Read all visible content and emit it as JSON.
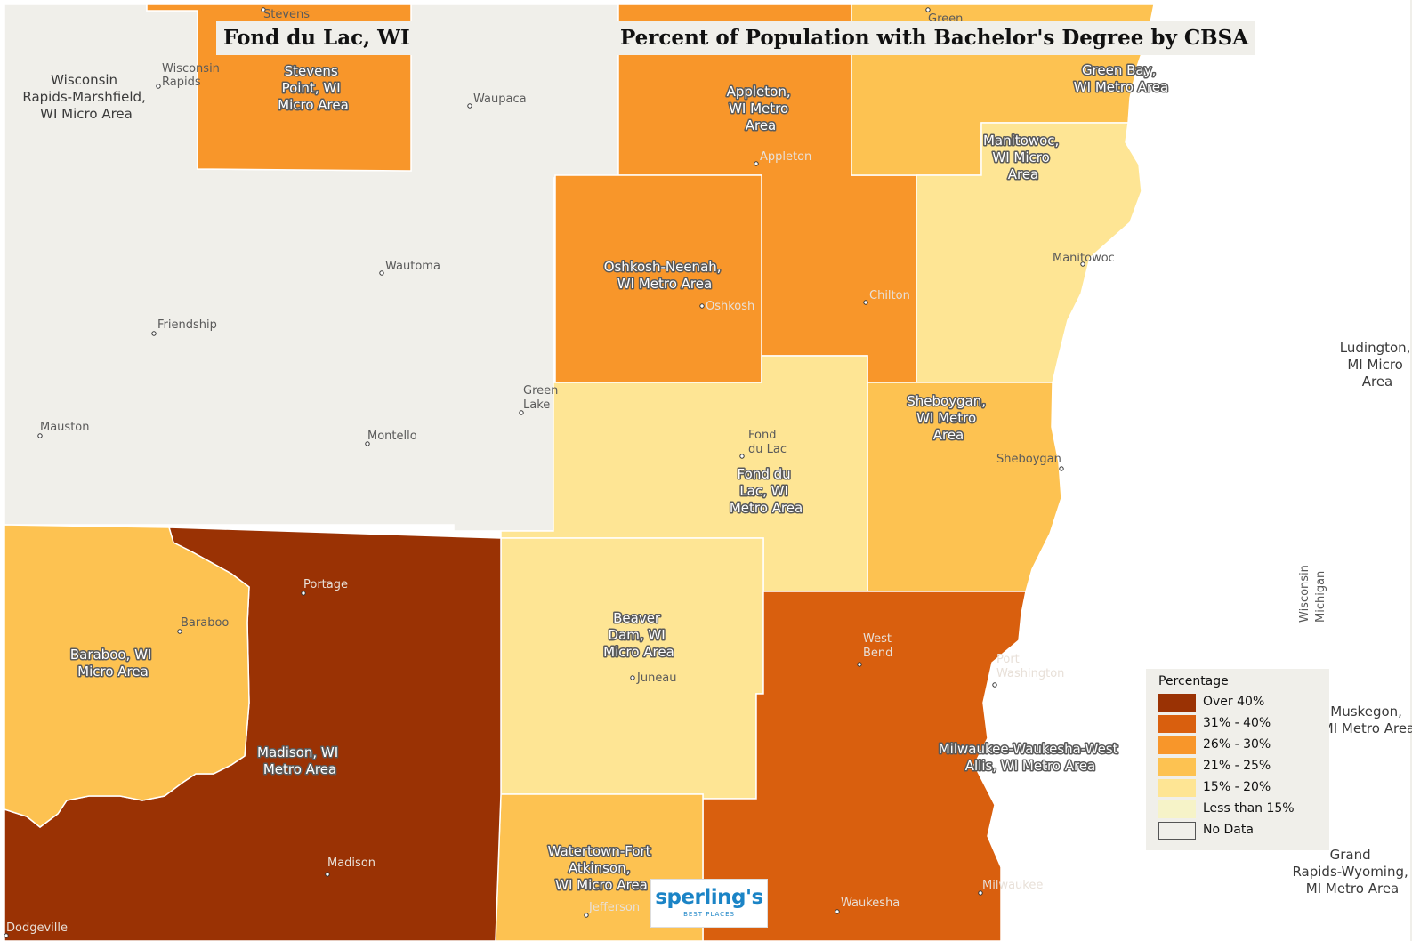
{
  "map_title": "Fond du Lac, WI",
  "map_subtitle": "Percent of Population with Bachelor's Degree by CBSA",
  "colors": {
    "over40": "#9a3204",
    "r31_40": "#d95f0e",
    "r26_30": "#f8962a",
    "r21_25": "#fdc251",
    "r15_20": "#fee594",
    "under15": "#f6f3c8",
    "nodata": "#f0efea"
  },
  "area_labels": {
    "stevens_point": [
      "Stevens",
      "Point, WI",
      "Micro Area"
    ],
    "appleton": [
      "Appleton,",
      "WI Metro",
      "Area"
    ],
    "green_bay": [
      "Green Bay,",
      "WI Metro Area"
    ],
    "manitowoc": [
      "Manitowoc,",
      "WI Micro",
      "Area"
    ],
    "oshkosh": [
      "Oshkosh-Neenah,",
      "WI Metro Area"
    ],
    "sheboygan": [
      "Sheboygan,",
      "WI Metro",
      "Area"
    ],
    "fond_du_lac": [
      "Fond du",
      "Lac, WI",
      "Metro Area"
    ],
    "beaver_dam": [
      "Beaver",
      "Dam, WI",
      "Micro Area"
    ],
    "baraboo": [
      "Baraboo, WI",
      "Micro Area"
    ],
    "madison": [
      "Madison, WI",
      "Metro Area"
    ],
    "milwaukee": [
      "Milwaukee-Waukesha-West",
      "Allis, WI Metro Area"
    ],
    "watertown": [
      "Watertown-Fort",
      "Atkinson,",
      "WI Micro Area"
    ],
    "wisconsin_rapids": [
      "Wisconsin",
      "Rapids-Marshfield,",
      "WI Micro Area"
    ],
    "ludington": [
      "Ludington,",
      "MI Micro",
      "Area"
    ],
    "muskegon": [
      "Muskegon,",
      "MI Metro Area"
    ],
    "grand_rapids": [
      "Grand",
      "Rapids-Wyoming,",
      "MI Metro Area"
    ]
  },
  "cities": {
    "stevens": [
      "Stevens"
    ],
    "green": [
      "Green"
    ],
    "wisconsin_rapids": [
      "Wisconsin",
      "Rapids"
    ],
    "waupaca": [
      "Waupaca"
    ],
    "appleton": [
      "Appleton"
    ],
    "wautoma": [
      "Wautoma"
    ],
    "friendship": [
      "Friendship"
    ],
    "oshkosh": [
      "Oshkosh"
    ],
    "chilton": [
      "Chilton"
    ],
    "manitowoc": [
      "Manitowoc"
    ],
    "green_lake": [
      "Green",
      "Lake"
    ],
    "mauston": [
      "Mauston"
    ],
    "montello": [
      "Montello"
    ],
    "fond_du_lac": [
      "Fond",
      "du Lac"
    ],
    "sheboygan": [
      "Sheboygan"
    ],
    "portage": [
      "Portage"
    ],
    "baraboo": [
      "Baraboo"
    ],
    "west_bend": [
      "West",
      "Bend"
    ],
    "port_washington": [
      "Port",
      "Washington"
    ],
    "juneau": [
      "Juneau"
    ],
    "madison": [
      "Madison"
    ],
    "milwaukee": [
      "Milwaukee"
    ],
    "waukesha": [
      "Waukesha"
    ],
    "jefferson": [
      "Jefferson"
    ],
    "dodgeville": [
      "Dodgeville"
    ]
  },
  "state_line_labels": {
    "wisconsin": "Wisconsin",
    "michigan": "Michigan"
  },
  "legend": {
    "title": "Percentage",
    "items": [
      {
        "label": "Over 40%",
        "color": "#9a3204"
      },
      {
        "label": "31% - 40%",
        "color": "#d95f0e"
      },
      {
        "label": "26% - 30%",
        "color": "#f8962a"
      },
      {
        "label": "21% - 25%",
        "color": "#fdc251"
      },
      {
        "label": "15% - 20%",
        "color": "#fee594"
      },
      {
        "label": "Less than 15%",
        "color": "#f6f3c8"
      },
      {
        "label": "No Data",
        "color": "#f0efea"
      }
    ]
  },
  "logo": {
    "name": "sperling's",
    "tagline": "BEST PLACES"
  }
}
